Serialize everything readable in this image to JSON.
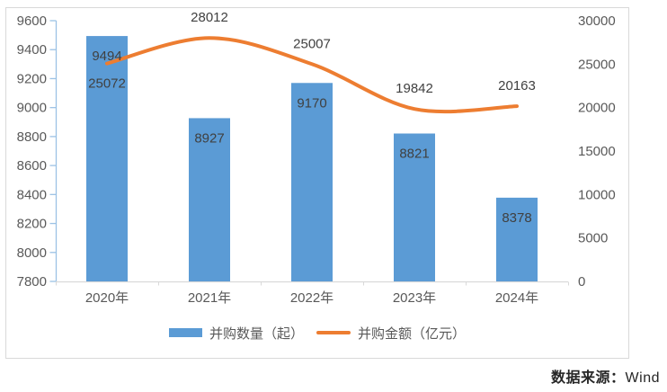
{
  "footer": {
    "label": "数据来源：",
    "value": "Wind"
  },
  "colors": {
    "bar": "#5B9BD5",
    "line": "#ED7D31",
    "data_label": "#404040",
    "axis_label": "#595959",
    "left_axis_line": "#9CC2E5",
    "category_axis_line": "#D9D9D9",
    "chart_border": "#D9D9D9",
    "legend_text": "#595959",
    "footer_text": "#262626"
  },
  "chart_data": {
    "type": "combo",
    "title": "",
    "categories": [
      "2020年",
      "2021年",
      "2022年",
      "2023年",
      "2024年"
    ],
    "series": [
      {
        "name": "并购数量（起）",
        "type": "bar",
        "axis": "left",
        "values": [
          9494,
          8927,
          9170,
          8821,
          8378
        ]
      },
      {
        "name": "并购金额（亿元）",
        "type": "line",
        "axis": "right",
        "values": [
          25072,
          28012,
          25007,
          19842,
          20163
        ],
        "label_positions": [
          "below",
          "above",
          "above",
          "above",
          "above"
        ]
      }
    ],
    "left_axis": {
      "min": 7800,
      "max": 9600,
      "step": 200,
      "ticks": [
        9600,
        9400,
        9200,
        9000,
        8800,
        8600,
        8400,
        8200,
        8000,
        7800
      ]
    },
    "right_axis": {
      "min": 0,
      "max": 30000,
      "step": 5000,
      "ticks": [
        30000,
        25000,
        20000,
        15000,
        10000,
        5000,
        0
      ]
    },
    "gridlines": false,
    "legend_position": "bottom"
  }
}
